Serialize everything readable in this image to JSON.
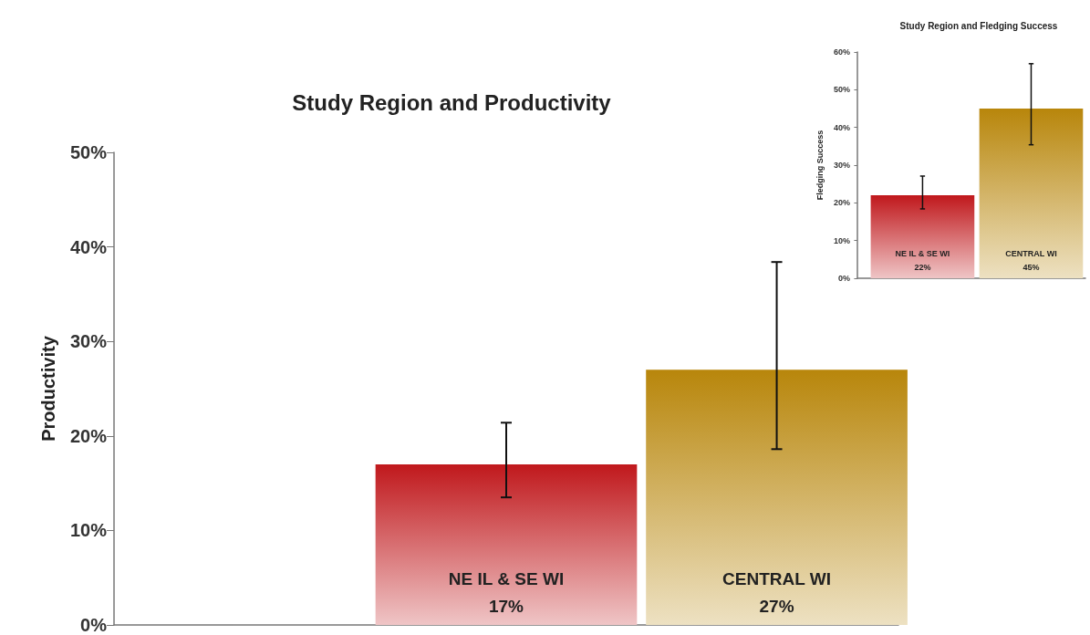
{
  "chart_data": [
    {
      "type": "bar",
      "title": "Study Region and Productivity",
      "ylabel": "Productivity",
      "categories": [
        "NE IL & SE WI",
        "CENTRAL WI"
      ],
      "colors": [
        "#c0181c",
        "#b8860b"
      ],
      "values": [
        17,
        27
      ],
      "value_labels": [
        "17%",
        "27%"
      ],
      "errors": [
        [
          13.5,
          21.4
        ],
        [
          18.6,
          38.4
        ]
      ],
      "ylim": [
        0,
        50
      ],
      "yticks": [
        {
          "value": 0,
          "label": "0%"
        },
        {
          "value": 10,
          "label": "10%"
        },
        {
          "value": 20,
          "label": "20%"
        },
        {
          "value": 30,
          "label": "30%"
        },
        {
          "value": 40,
          "label": "40%"
        },
        {
          "value": 50,
          "label": "50%"
        }
      ]
    },
    {
      "type": "bar",
      "title": "Study Region and Fledging Success",
      "ylabel": "Fledging Success",
      "categories": [
        "NE IL & SE WI",
        "CENTRAL WI"
      ],
      "colors": [
        "#c0181c",
        "#b8860b"
      ],
      "values": [
        22,
        45
      ],
      "value_labels": [
        "22%",
        "45%"
      ],
      "errors": [
        [
          18.4,
          27.1
        ],
        [
          35.4,
          56.9
        ]
      ],
      "ylim": [
        0,
        60
      ],
      "yticks": [
        {
          "value": 0,
          "label": "0%"
        },
        {
          "value": 10,
          "label": "10%"
        },
        {
          "value": 20,
          "label": "20%"
        },
        {
          "value": 30,
          "label": "30%"
        },
        {
          "value": 40,
          "label": "40%"
        },
        {
          "value": 50,
          "label": "50%"
        },
        {
          "value": 60,
          "label": "60%"
        }
      ]
    }
  ]
}
